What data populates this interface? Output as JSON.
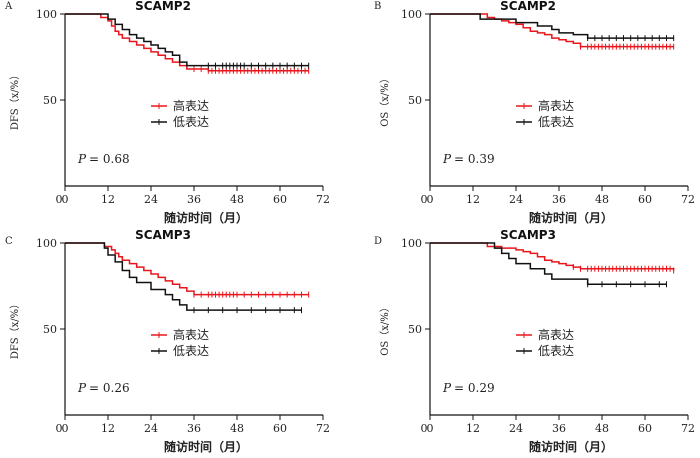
{
  "chart_data": [
    {
      "type": "line",
      "panel_letter": "A",
      "title": "SCAMP2",
      "ylabel": "DFS（x/%）",
      "xlabel": "随访时间（月）",
      "p_label": "P",
      "p_value": "= 0.68",
      "xlim": [
        0,
        72
      ],
      "ylim": [
        0,
        100
      ],
      "x_ticks": [
        0,
        12,
        24,
        36,
        48,
        60,
        72
      ],
      "y_ticks": [
        50,
        100
      ],
      "legend": [
        "高表达",
        "低表达"
      ],
      "series": [
        {
          "name": "高表达",
          "color": "#e8161b",
          "x": [
            0,
            8,
            10,
            12,
            13,
            14,
            15,
            16,
            18,
            20,
            22,
            24,
            26,
            28,
            30,
            32,
            34,
            36,
            40,
            48,
            60,
            68
          ],
          "y": [
            100,
            100,
            98,
            96,
            93,
            90,
            88,
            86,
            84,
            82,
            80,
            78,
            76,
            74,
            72,
            70,
            68,
            68,
            67,
            67,
            67,
            67
          ],
          "censor_x": [
            36,
            38,
            40,
            41,
            42,
            43,
            44,
            45,
            46,
            47,
            48,
            49,
            50,
            51,
            52,
            53,
            54,
            55,
            56,
            57,
            58,
            59,
            60,
            61,
            62,
            63,
            64,
            65,
            66,
            67,
            68
          ]
        },
        {
          "name": "低表达",
          "color": "#111111",
          "x": [
            0,
            10,
            12,
            14,
            16,
            18,
            20,
            22,
            24,
            26,
            28,
            30,
            32,
            34,
            36,
            68
          ],
          "y": [
            100,
            100,
            97,
            94,
            91,
            88,
            86,
            84,
            82,
            80,
            78,
            76,
            72,
            70,
            70,
            70
          ],
          "censor_x": [
            40,
            42,
            44,
            45,
            46,
            47,
            48,
            49,
            50,
            52,
            54,
            56,
            58,
            60,
            62,
            64,
            66,
            68
          ]
        }
      ]
    },
    {
      "type": "line",
      "panel_letter": "B",
      "title": "SCAMP2",
      "ylabel": "OS（x/%）",
      "xlabel": "随访时间（月）",
      "p_label": "P",
      "p_value": "= 0.39",
      "xlim": [
        0,
        72
      ],
      "ylim": [
        0,
        100
      ],
      "x_ticks": [
        0,
        12,
        24,
        36,
        48,
        60,
        72
      ],
      "y_ticks": [
        50,
        100
      ],
      "legend": [
        "高表达",
        "低表达"
      ],
      "series": [
        {
          "name": "高表达",
          "color": "#e8161b",
          "x": [
            0,
            14,
            16,
            18,
            20,
            22,
            24,
            26,
            28,
            30,
            32,
            34,
            36,
            38,
            40,
            42,
            68
          ],
          "y": [
            100,
            100,
            98,
            97,
            96,
            95,
            94,
            92,
            90,
            89,
            88,
            86,
            85,
            84,
            83,
            81,
            81
          ],
          "censor_x": [
            42,
            44,
            45,
            46,
            47,
            48,
            49,
            50,
            51,
            52,
            53,
            54,
            55,
            56,
            57,
            58,
            59,
            60,
            61,
            62,
            63,
            64,
            65,
            66,
            67,
            68
          ]
        },
        {
          "name": "低表达",
          "color": "#111111",
          "x": [
            0,
            12,
            14,
            20,
            24,
            30,
            34,
            36,
            40,
            44,
            68
          ],
          "y": [
            100,
            100,
            97,
            97,
            95,
            93,
            91,
            89,
            88,
            86,
            86
          ],
          "censor_x": [
            44,
            46,
            48,
            50,
            52,
            54,
            56,
            58,
            60,
            62,
            64,
            66,
            68
          ]
        }
      ]
    },
    {
      "type": "line",
      "panel_letter": "C",
      "title": "SCAMP3",
      "ylabel": "DFS（x/%）",
      "xlabel": "随访时间（月）",
      "p_label": "P",
      "p_value": "= 0.26",
      "xlim": [
        0,
        72
      ],
      "ylim": [
        0,
        100
      ],
      "x_ticks": [
        0,
        12,
        24,
        36,
        48,
        60,
        72
      ],
      "y_ticks": [
        50,
        100
      ],
      "legend": [
        "高表达",
        "低表达"
      ],
      "series": [
        {
          "name": "高表达",
          "color": "#e8161b",
          "x": [
            0,
            9,
            11,
            13,
            14,
            15,
            16,
            18,
            20,
            22,
            24,
            26,
            28,
            30,
            32,
            34,
            36,
            68
          ],
          "y": [
            100,
            100,
            98,
            96,
            94,
            92,
            90,
            88,
            86,
            84,
            82,
            80,
            78,
            76,
            74,
            72,
            70,
            70
          ],
          "censor_x": [
            36,
            38,
            40,
            41,
            42,
            43,
            44,
            45,
            46,
            47,
            48,
            50,
            52,
            54,
            56,
            58,
            60,
            62,
            64,
            66,
            68
          ]
        },
        {
          "name": "低表达",
          "color": "#111111",
          "x": [
            0,
            9,
            11,
            12,
            14,
            16,
            18,
            20,
            24,
            28,
            30,
            32,
            34,
            66
          ],
          "y": [
            100,
            100,
            97,
            93,
            89,
            84,
            80,
            77,
            73,
            70,
            67,
            64,
            61,
            61
          ],
          "censor_x": [
            36,
            40,
            44,
            48,
            52,
            56,
            60,
            64,
            66
          ]
        }
      ]
    },
    {
      "type": "line",
      "panel_letter": "D",
      "title": "SCAMP3",
      "ylabel": "OS（x/%）",
      "xlabel": "随访时间（月）",
      "p_label": "P",
      "p_value": "= 0.29",
      "xlim": [
        0,
        72
      ],
      "ylim": [
        0,
        100
      ],
      "x_ticks": [
        0,
        12,
        24,
        36,
        48,
        60,
        72
      ],
      "y_ticks": [
        50,
        100
      ],
      "legend": [
        "高表达",
        "低表达"
      ],
      "series": [
        {
          "name": "高表达",
          "color": "#e8161b",
          "x": [
            0,
            12,
            16,
            20,
            24,
            26,
            28,
            30,
            32,
            34,
            36,
            38,
            40,
            42,
            68
          ],
          "y": [
            100,
            100,
            98,
            97,
            96,
            95,
            94,
            92,
            90,
            89,
            88,
            87,
            86,
            85,
            84
          ],
          "censor_x": [
            40,
            42,
            44,
            45,
            46,
            47,
            48,
            49,
            50,
            51,
            52,
            53,
            54,
            55,
            56,
            57,
            58,
            59,
            60,
            61,
            62,
            63,
            64,
            65,
            66,
            67,
            68
          ]
        },
        {
          "name": "低表达",
          "color": "#111111",
          "x": [
            0,
            12,
            18,
            20,
            22,
            24,
            28,
            32,
            34,
            40,
            44,
            66
          ],
          "y": [
            100,
            100,
            97,
            94,
            91,
            88,
            85,
            82,
            79,
            79,
            76,
            76
          ],
          "censor_x": [
            44,
            48,
            52,
            56,
            60,
            64,
            66
          ]
        }
      ]
    }
  ]
}
